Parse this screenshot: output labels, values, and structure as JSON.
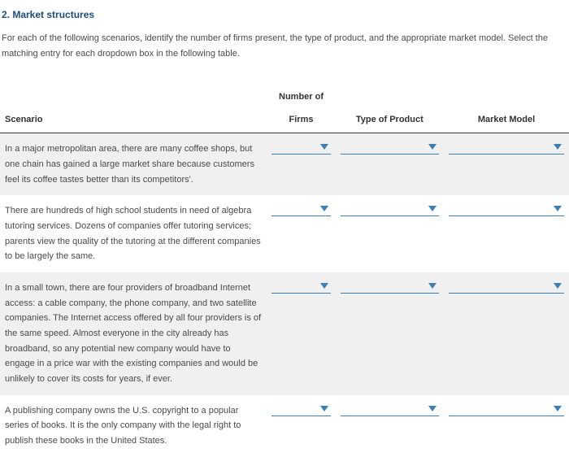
{
  "title": "2. Market structures",
  "instructions": "For each of the following scenarios, identify the number of firms present, the type of product, and the appropriate market model. Select the matching entry for each dropdown box in the following table.",
  "headers": {
    "scenario": "Scenario",
    "firms_top": "Number of",
    "firms_bottom": "Firms",
    "type": "Type of Product",
    "model": "Market Model"
  },
  "rows": [
    {
      "scenario": "In a major metropolitan area, there are many coffee shops, but one chain has gained a large market share because customers feel its coffee tastes better than its competitors'."
    },
    {
      "scenario": "There are hundreds of high school students in need of algebra tutoring services. Dozens of companies offer tutoring services; parents view the quality of the tutoring at the different companies to be largely the same."
    },
    {
      "scenario": "In a small town, there are four providers of broadband Internet access: a cable company, the phone company, and two satellite companies. The Internet access offered by all four providers is of the same speed. Almost everyone in the city already has broadband, so any potential new company would have to engage in a price war with the existing companies and would be unlikely to cover its costs for years, if ever."
    },
    {
      "scenario": "A publishing company owns the U.S. copyright to a popular series of books. It is the only company with the legal right to publish these books in the United States."
    }
  ],
  "colors": {
    "accent": "#3a7fb5",
    "heading": "#1a4d7a"
  }
}
